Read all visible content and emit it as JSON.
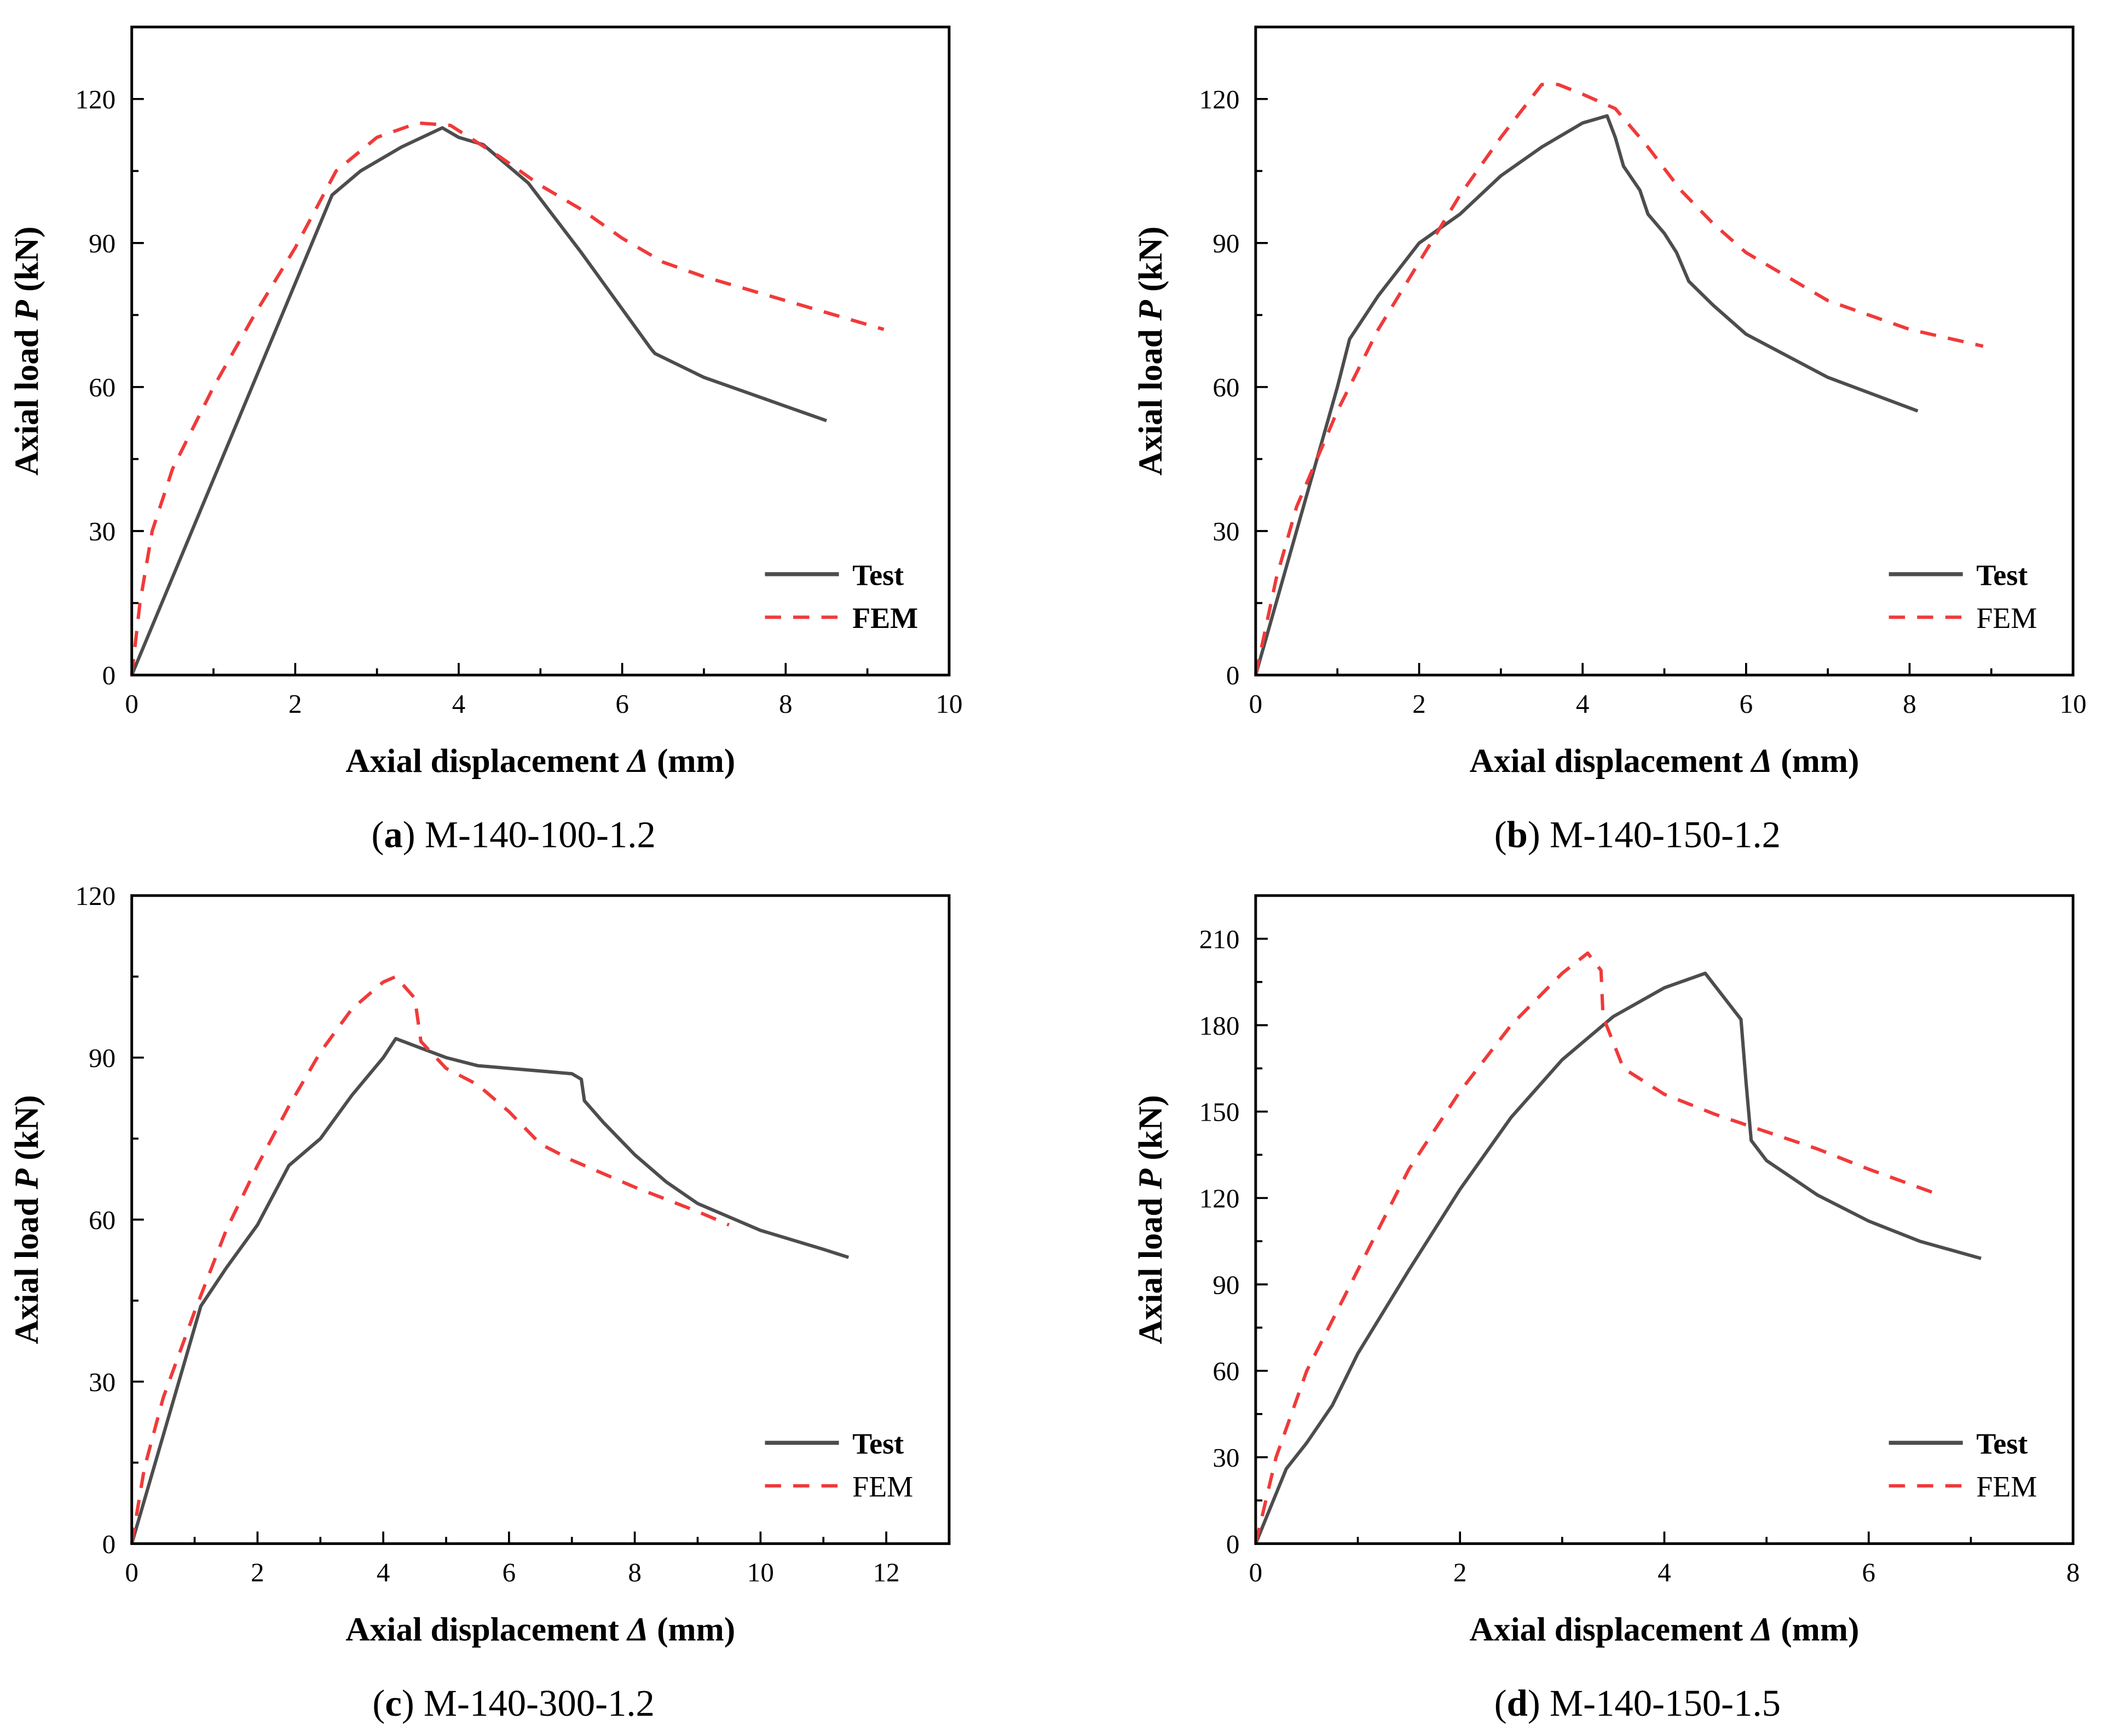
{
  "colors": {
    "test": "#4d4d4d",
    "fem": "#f03a3a",
    "axis": "#000000"
  },
  "chart_data": [
    {
      "type": "line",
      "caption_letter": "(a)",
      "caption_text": " M-140-100-1.2",
      "xlabel_pre": "Axial displacement ",
      "xlabel_sym": "Δ",
      "xlabel_post": " (mm)",
      "ylabel_pre": "Axial load ",
      "ylabel_sym": "P",
      "ylabel_post": " (kN)",
      "xlim": [
        0,
        10
      ],
      "ylim": [
        0,
        135
      ],
      "xticks": [
        0,
        2,
        4,
        6,
        8,
        10
      ],
      "yticks": [
        0,
        30,
        60,
        90,
        120
      ],
      "legend_position": "bottom-right",
      "legend_fem_bold": true,
      "series": [
        {
          "name": "Test",
          "style": "solid",
          "points": [
            [
              0,
              0
            ],
            [
              2.45,
              100
            ],
            [
              2.8,
              105
            ],
            [
              3.3,
              110
            ],
            [
              3.8,
              114
            ],
            [
              4.0,
              112
            ],
            [
              4.3,
              110.5
            ],
            [
              4.85,
              102.5
            ],
            [
              5.5,
              88
            ],
            [
              6.35,
              68
            ],
            [
              6.4,
              67
            ],
            [
              7,
              62
            ],
            [
              7.5,
              59
            ],
            [
              8,
              56
            ],
            [
              8.5,
              53
            ]
          ]
        },
        {
          "name": "FEM",
          "style": "dashed",
          "points": [
            [
              0,
              0
            ],
            [
              0.1,
              15
            ],
            [
              0.25,
              30
            ],
            [
              0.5,
              43
            ],
            [
              1,
              60
            ],
            [
              1.5,
              75
            ],
            [
              2,
              89
            ],
            [
              2.5,
              105
            ],
            [
              3,
              112
            ],
            [
              3.5,
              115
            ],
            [
              3.9,
              114.5
            ],
            [
              4.5,
              108
            ],
            [
              5,
              102
            ],
            [
              5.5,
              97
            ],
            [
              6,
              91
            ],
            [
              6.5,
              86
            ],
            [
              7,
              83
            ],
            [
              8,
              78
            ],
            [
              9.2,
              72
            ]
          ]
        }
      ]
    },
    {
      "type": "line",
      "caption_letter": "(b)",
      "caption_text": " M-140-150-1.2",
      "xlabel_pre": "Axial displacement ",
      "xlabel_sym": "Δ",
      "xlabel_post": " (mm)",
      "ylabel_pre": "Axial load ",
      "ylabel_sym": "P",
      "ylabel_post": " (kN)",
      "xlim": [
        0,
        10
      ],
      "ylim": [
        0,
        135
      ],
      "xticks": [
        0,
        2,
        4,
        6,
        8,
        10
      ],
      "yticks": [
        0,
        30,
        60,
        90,
        120
      ],
      "legend_position": "bottom-right",
      "legend_fem_bold": false,
      "series": [
        {
          "name": "Test",
          "style": "solid",
          "points": [
            [
              0,
              0
            ],
            [
              0.5,
              30
            ],
            [
              1,
              60
            ],
            [
              1.15,
              70
            ],
            [
              1.5,
              79
            ],
            [
              2,
              90
            ],
            [
              2.5,
              96
            ],
            [
              3,
              104
            ],
            [
              3.5,
              110
            ],
            [
              4,
              115
            ],
            [
              4.3,
              116.5
            ],
            [
              4.4,
              112
            ],
            [
              4.5,
              106
            ],
            [
              4.7,
              101
            ],
            [
              4.8,
              96
            ],
            [
              5.0,
              92
            ],
            [
              5.15,
              88
            ],
            [
              5.3,
              82
            ],
            [
              5.6,
              77
            ],
            [
              6,
              71
            ],
            [
              7,
              62
            ],
            [
              8.1,
              55
            ]
          ]
        },
        {
          "name": "FEM",
          "style": "dashed",
          "points": [
            [
              0,
              0
            ],
            [
              0.25,
              20
            ],
            [
              0.5,
              35
            ],
            [
              1,
              55
            ],
            [
              1.5,
              72
            ],
            [
              2,
              86
            ],
            [
              2.5,
              100
            ],
            [
              3,
              112
            ],
            [
              3.5,
              123
            ],
            [
              3.7,
              123
            ],
            [
              4,
              121
            ],
            [
              4.4,
              118
            ],
            [
              4.8,
              110
            ],
            [
              5.2,
              101
            ],
            [
              5.6,
              94
            ],
            [
              6,
              88
            ],
            [
              7,
              78
            ],
            [
              8,
              72
            ],
            [
              8.9,
              68.5
            ]
          ]
        }
      ]
    },
    {
      "type": "line",
      "caption_letter": "(c)",
      "caption_text": " M-140-300-1.2",
      "xlabel_pre": "Axial displacement ",
      "xlabel_sym": "Δ",
      "xlabel_post": " (mm)",
      "ylabel_pre": "Axial load ",
      "ylabel_sym": "P",
      "ylabel_post": " (kN)",
      "xlim": [
        0,
        13
      ],
      "ylim": [
        0,
        120
      ],
      "xticks": [
        0,
        2,
        4,
        6,
        8,
        10,
        12
      ],
      "yticks": [
        0,
        30,
        60,
        90,
        120
      ],
      "legend_position": "bottom-right",
      "legend_fem_bold": false,
      "series": [
        {
          "name": "Test",
          "style": "solid",
          "points": [
            [
              0,
              0
            ],
            [
              1.1,
              44
            ],
            [
              1.5,
              51
            ],
            [
              2,
              59
            ],
            [
              2.5,
              70
            ],
            [
              3,
              75
            ],
            [
              3.5,
              83
            ],
            [
              4,
              90
            ],
            [
              4.2,
              93.5
            ],
            [
              5,
              90
            ],
            [
              5.5,
              88.5
            ],
            [
              6,
              88
            ],
            [
              7,
              87
            ],
            [
              7.15,
              86
            ],
            [
              7.2,
              82
            ],
            [
              7.5,
              78
            ],
            [
              8,
              72
            ],
            [
              8.5,
              67
            ],
            [
              9,
              63
            ],
            [
              10,
              58
            ],
            [
              11,
              54.5
            ],
            [
              11.4,
              53
            ]
          ]
        },
        {
          "name": "FEM",
          "style": "dashed",
          "points": [
            [
              0,
              0
            ],
            [
              0.2,
              14
            ],
            [
              0.5,
              27
            ],
            [
              1,
              43
            ],
            [
              1.5,
              58
            ],
            [
              2,
              70
            ],
            [
              2.5,
              81
            ],
            [
              3,
              91
            ],
            [
              3.5,
              99
            ],
            [
              4,
              104
            ],
            [
              4.2,
              105
            ],
            [
              4.5,
              101
            ],
            [
              4.6,
              93
            ],
            [
              5,
              88
            ],
            [
              5.5,
              85
            ],
            [
              6,
              80
            ],
            [
              6.5,
              74
            ],
            [
              7,
              71
            ],
            [
              8,
              66
            ],
            [
              9,
              61.5
            ],
            [
              9.5,
              59
            ]
          ]
        }
      ]
    },
    {
      "type": "line",
      "caption_letter": "(d)",
      "caption_text": " M-140-150-1.5",
      "xlabel_pre": "Axial displacement ",
      "xlabel_sym": "Δ",
      "xlabel_post": " (mm)",
      "ylabel_pre": "Axial load ",
      "ylabel_sym": "P",
      "ylabel_post": " (kN)",
      "xlim": [
        0,
        8
      ],
      "ylim": [
        0,
        225
      ],
      "xticks": [
        0,
        2,
        4,
        6,
        8
      ],
      "yticks": [
        0,
        30,
        60,
        90,
        120,
        150,
        180,
        210
      ],
      "legend_position": "bottom-right",
      "legend_fem_bold": false,
      "series": [
        {
          "name": "Test",
          "style": "solid",
          "points": [
            [
              0,
              0
            ],
            [
              0.3,
              26
            ],
            [
              0.5,
              35
            ],
            [
              0.75,
              48
            ],
            [
              1,
              66
            ],
            [
              1.5,
              95
            ],
            [
              2,
              123
            ],
            [
              2.5,
              148
            ],
            [
              3,
              168
            ],
            [
              3.5,
              183
            ],
            [
              4,
              193
            ],
            [
              4.4,
              198
            ],
            [
              4.75,
              182
            ],
            [
              4.8,
              160
            ],
            [
              4.85,
              140
            ],
            [
              5,
              133
            ],
            [
              5.5,
              121
            ],
            [
              6,
              112
            ],
            [
              6.5,
              105
            ],
            [
              7.1,
              99
            ]
          ]
        },
        {
          "name": "FEM",
          "style": "dashed",
          "points": [
            [
              0,
              0
            ],
            [
              0.2,
              30
            ],
            [
              0.5,
              60
            ],
            [
              1,
              95
            ],
            [
              1.5,
              130
            ],
            [
              2,
              157
            ],
            [
              2.5,
              180
            ],
            [
              3,
              198
            ],
            [
              3.25,
              205
            ],
            [
              3.38,
              199
            ],
            [
              3.4,
              183
            ],
            [
              3.6,
              165
            ],
            [
              4,
              156
            ],
            [
              4.5,
              149
            ],
            [
              5,
              143
            ],
            [
              5.5,
              137
            ],
            [
              6,
              130
            ],
            [
              6.7,
              121
            ]
          ]
        }
      ]
    }
  ]
}
